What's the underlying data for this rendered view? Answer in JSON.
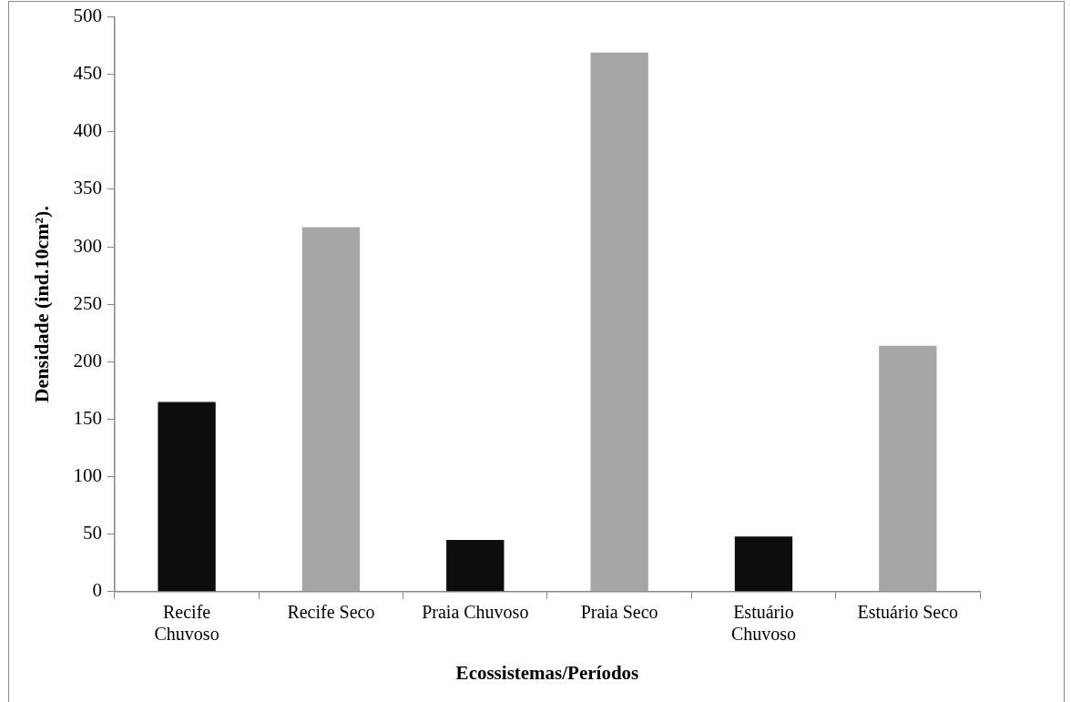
{
  "chart_data": {
    "type": "bar",
    "xlabel": "Ecossistemas/Períodos",
    "ylabel": "Densidade (ind.10cm²).",
    "categories": [
      "Recife Chuvoso",
      "Recife Seco",
      "Praia Chuvoso",
      "Praia Seco",
      "Estuário Chuvoso",
      "Estuário Seco"
    ],
    "values": [
      165,
      317,
      45,
      469,
      48,
      214
    ],
    "colors": [
      "#0d0d0d",
      "#a6a6a6",
      "#0d0d0d",
      "#a6a6a6",
      "#0d0d0d",
      "#a6a6a6"
    ],
    "ylim": [
      0,
      500
    ],
    "yticks": [
      0,
      50,
      100,
      150,
      200,
      250,
      300,
      350,
      400,
      450,
      500
    ],
    "grid": false,
    "legend": false
  }
}
